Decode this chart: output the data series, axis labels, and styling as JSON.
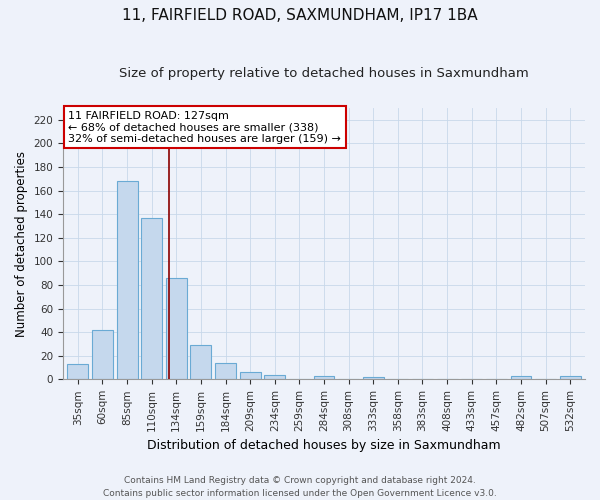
{
  "title1": "11, FAIRFIELD ROAD, SAXMUNDHAM, IP17 1BA",
  "title2": "Size of property relative to detached houses in Saxmundham",
  "xlabel": "Distribution of detached houses by size in Saxmundham",
  "ylabel": "Number of detached properties",
  "categories": [
    "35sqm",
    "60sqm",
    "85sqm",
    "110sqm",
    "134sqm",
    "159sqm",
    "184sqm",
    "209sqm",
    "234sqm",
    "259sqm",
    "284sqm",
    "308sqm",
    "333sqm",
    "358sqm",
    "383sqm",
    "408sqm",
    "433sqm",
    "457sqm",
    "482sqm",
    "507sqm",
    "532sqm"
  ],
  "values": [
    13,
    42,
    168,
    137,
    86,
    29,
    14,
    6,
    4,
    0,
    3,
    0,
    2,
    0,
    0,
    0,
    0,
    0,
    3,
    0,
    3
  ],
  "bar_color": "#c5d8ed",
  "bar_edge_color": "#6aaad4",
  "grid_color": "#c8d8ea",
  "background_color": "#eef2fa",
  "vline_color": "#8b0000",
  "annotation_text": "11 FAIRFIELD ROAD: 127sqm\n← 68% of detached houses are smaller (338)\n32% of semi-detached houses are larger (159) →",
  "annotation_box_color": "white",
  "annotation_box_edge": "#cc0000",
  "ylim": [
    0,
    230
  ],
  "yticks": [
    0,
    20,
    40,
    60,
    80,
    100,
    120,
    140,
    160,
    180,
    200,
    220
  ],
  "footer_line1": "Contains HM Land Registry data © Crown copyright and database right 2024.",
  "footer_line2": "Contains public sector information licensed under the Open Government Licence v3.0.",
  "title1_fontsize": 11,
  "title2_fontsize": 9.5,
  "xlabel_fontsize": 9,
  "ylabel_fontsize": 8.5,
  "tick_fontsize": 7.5,
  "annotation_fontsize": 8,
  "footer_fontsize": 6.5
}
